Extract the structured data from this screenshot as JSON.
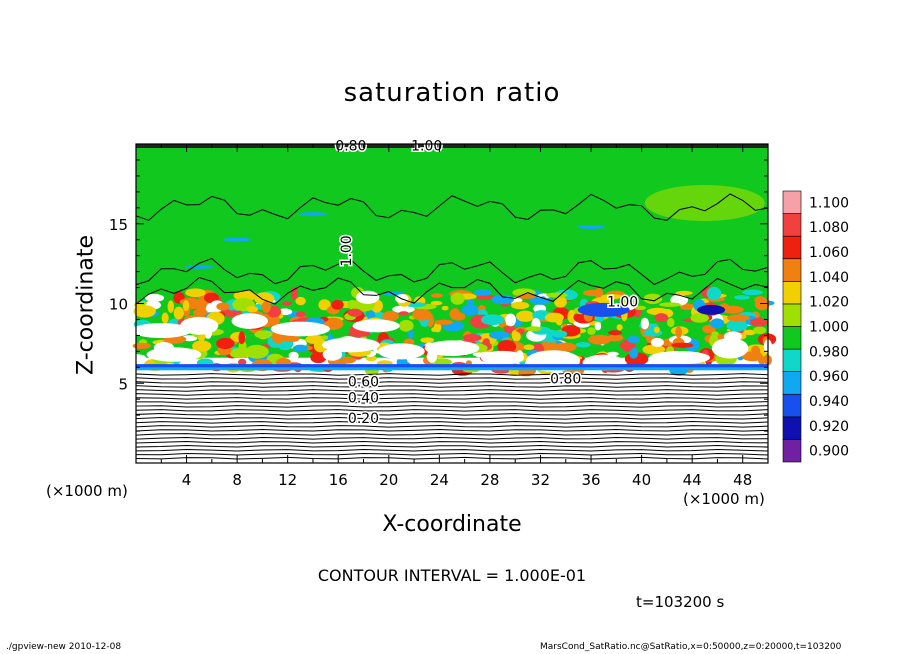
{
  "chart_data": {
    "type": "heatmap",
    "title": "saturation ratio",
    "xlabel": "X-coordinate",
    "ylabel": "Z-coordinate",
    "x_unit_label": "(×1000 m)",
    "x_ticks": [
      4,
      8,
      12,
      16,
      20,
      24,
      28,
      32,
      36,
      40,
      44,
      48
    ],
    "xlim": [
      0,
      50
    ],
    "y_ticks": [
      5,
      10,
      15
    ],
    "ylim": [
      0,
      20
    ],
    "colorbar": {
      "levels": [
        0.9,
        0.92,
        0.94,
        0.96,
        0.98,
        1.0,
        1.02,
        1.04,
        1.06,
        1.08,
        1.1
      ],
      "labels": [
        "0.900",
        "0.920",
        "0.940",
        "0.960",
        "0.980",
        "1.000",
        "1.020",
        "1.040",
        "1.060",
        "1.080",
        "1.100"
      ],
      "colors": [
        "#7020a0",
        "#1010b0",
        "#1850f0",
        "#10a8f0",
        "#10d8c8",
        "#10c81e",
        "#a0e000",
        "#f0d000",
        "#f08010",
        "#f02010",
        "#f04040",
        "#f8a0a8"
      ]
    },
    "contour_labels": [
      "0.80",
      "1.00",
      "1.00",
      "1.00",
      "0.60",
      "0.40",
      "0.20",
      "0.80"
    ],
    "contour_interval": "CONTOUR INTERVAL = 1.000E-01",
    "time": "t=103200 s",
    "data_summary": {
      "low_layer_z_range": [
        0,
        6
      ],
      "low_layer_values": "below 0.9 (white, contoured 0.1–0.9)",
      "supersaturated_band_z_range": [
        6,
        11
      ],
      "upper_region_value": 1.0
    }
  },
  "footer": {
    "left": "./gpview-new  2010-12-08",
    "right": "MarsCond_SatRatio.nc@SatRatio,x=0:50000,z=0:20000,t=103200"
  }
}
